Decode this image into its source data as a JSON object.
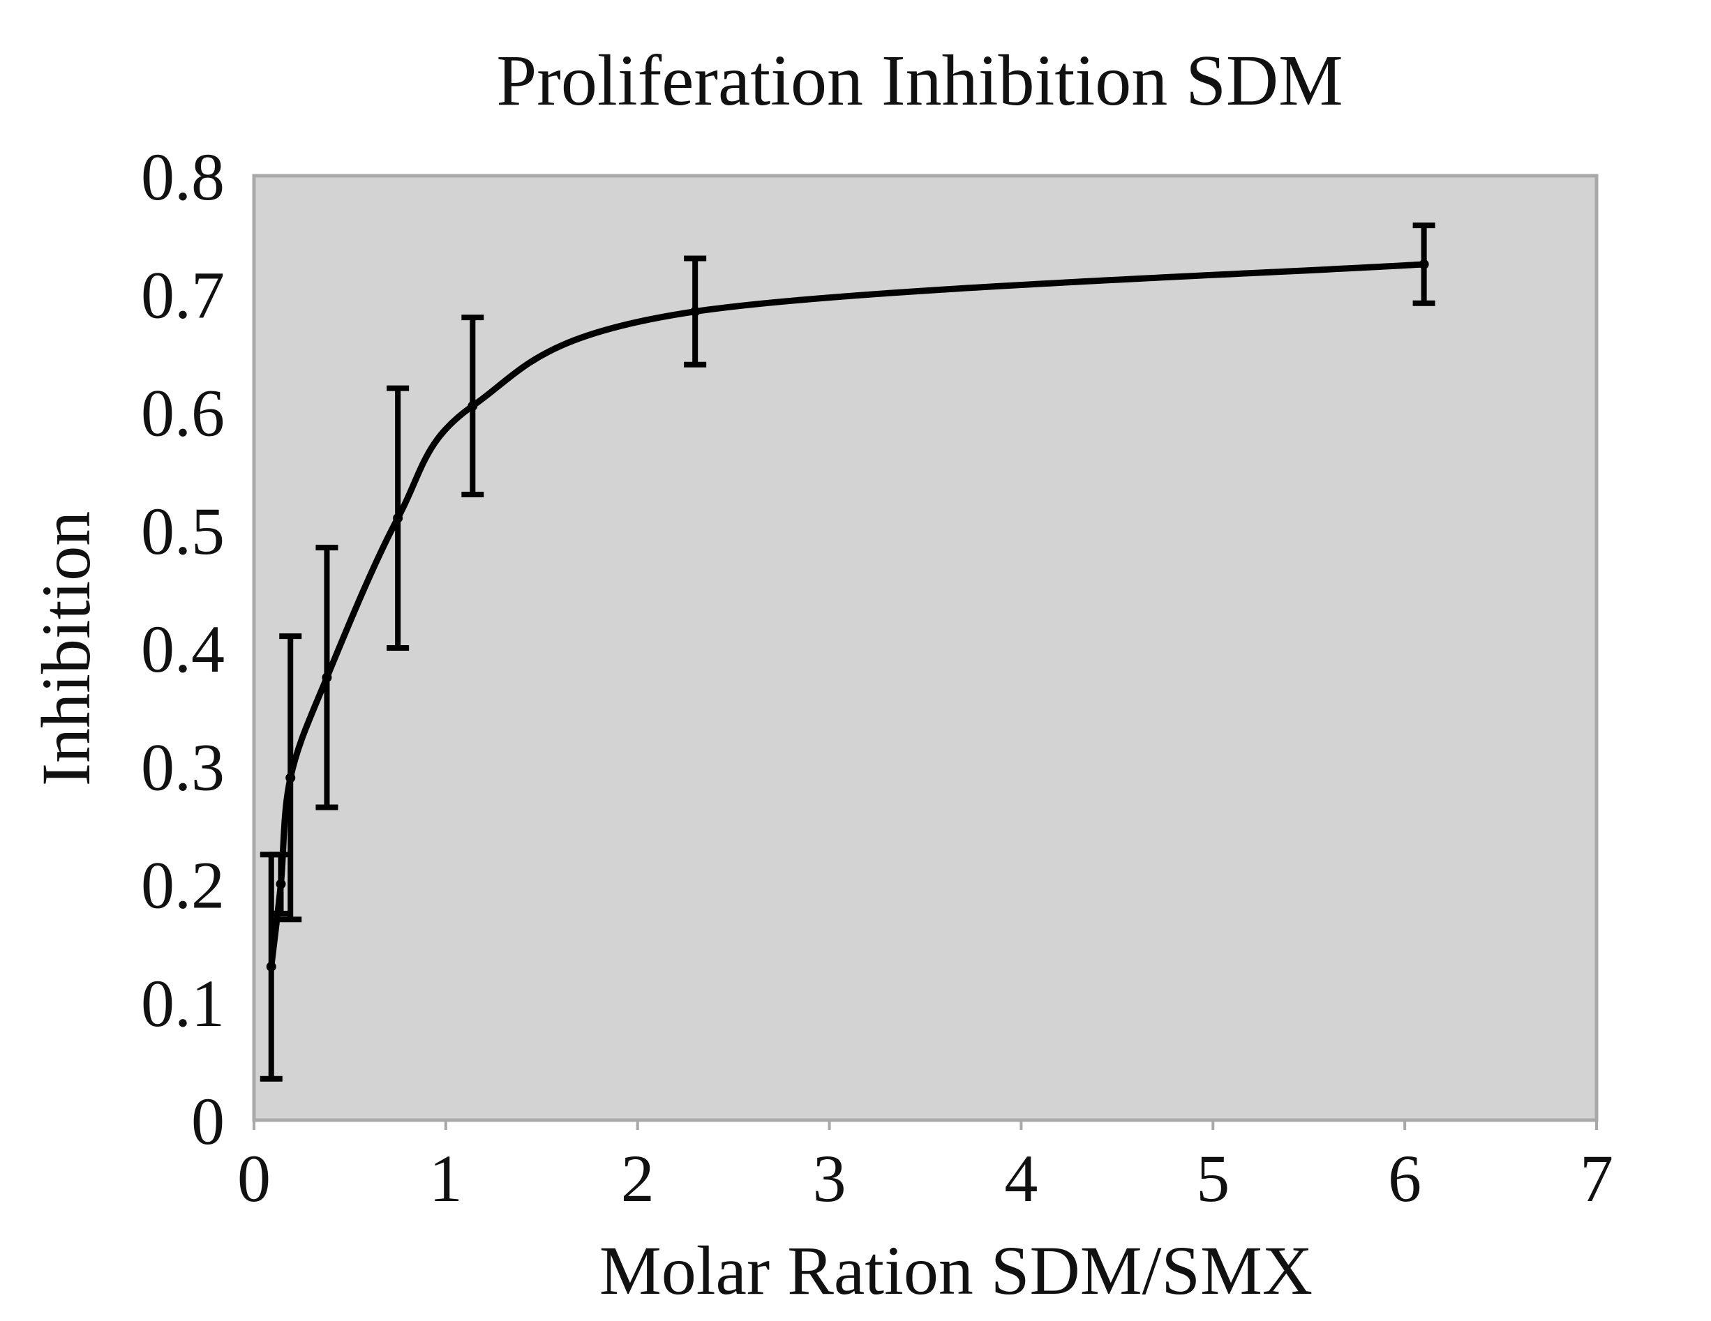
{
  "chart_data": {
    "type": "line",
    "title": "Proliferation Inhibition SDM",
    "xlabel": "Molar Ration SDM/SMX",
    "ylabel": "Inhibition",
    "xlim": [
      0,
      7
    ],
    "ylim": [
      0,
      0.8
    ],
    "x_ticks": [
      "0",
      "1",
      "2",
      "3",
      "4",
      "5",
      "6",
      "7"
    ],
    "y_ticks": [
      "0",
      "0.1",
      "0.2",
      "0.3",
      "0.4",
      "0.5",
      "0.6",
      "0.7",
      "0.8"
    ],
    "grid": false,
    "legend": "none",
    "series": [
      {
        "x": [
          0.09,
          0.14,
          0.19,
          0.38,
          0.75,
          1.14,
          2.3,
          6.1
        ],
        "y": [
          0.13,
          0.2,
          0.29,
          0.375,
          0.51,
          0.605,
          0.685,
          0.725
        ],
        "err": [
          0.095,
          0.025,
          0.12,
          0.11,
          0.11,
          0.075,
          0.045,
          0.033
        ]
      }
    ],
    "colors": {
      "plot_background": "#d3d3d3",
      "plot_border": "#a9a9a9",
      "line": "#000000"
    }
  }
}
